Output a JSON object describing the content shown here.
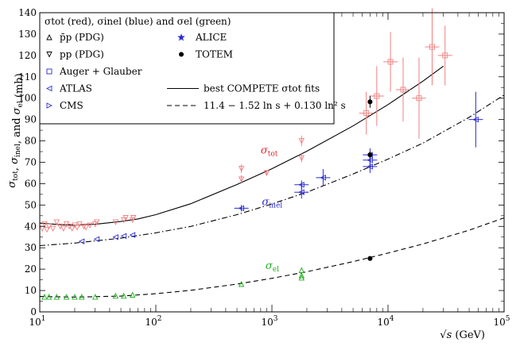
{
  "chart_data": {
    "type": "scatter",
    "title": "",
    "xlabel": "√s (GeV)",
    "xlabel_symbol": "√s",
    "xlabel_unit": "(GeV)",
    "ylabel": "σ_tot, σ_inel, and σ_el (mb)",
    "ylabel_unit": "(mb)",
    "xscale": "log",
    "xlim": [
      10,
      100000
    ],
    "ylim": [
      0,
      140
    ],
    "x_ticks": [
      10,
      100,
      1000,
      10000,
      100000
    ],
    "x_tick_labels": [
      {
        "base": "10",
        "exp": "1"
      },
      {
        "base": "10",
        "exp": "2"
      },
      {
        "base": "10",
        "exp": "3"
      },
      {
        "base": "10",
        "exp": "4"
      },
      {
        "base": "10",
        "exp": "5"
      }
    ],
    "y_ticks": [
      0,
      10,
      20,
      30,
      40,
      50,
      60,
      70,
      80,
      90,
      100,
      110,
      120,
      130,
      140
    ],
    "legend": {
      "placement": "top-left",
      "header": "σtot (red), σinel (blue) and σel (green)",
      "entries": [
        {
          "marker": "triangle-up",
          "label": "p̄p (PDG)"
        },
        {
          "marker": "triangle-down",
          "label": "pp (PDG)"
        },
        {
          "marker": "square",
          "label": "Auger + Glauber"
        },
        {
          "marker": "triangle-left",
          "label": "ATLAS"
        },
        {
          "marker": "triangle-right",
          "label": "CMS"
        },
        {
          "marker": "star",
          "label": "ALICE"
        },
        {
          "marker": "circle",
          "label": "TOTEM"
        },
        {
          "marker": "solid-line",
          "label": "best COMPETE σtot fits"
        },
        {
          "marker": "dashed-line",
          "label": "11.4 − 1.52 ln s + 0.130 ln² s"
        }
      ]
    },
    "annotations": [
      {
        "text": "σtot",
        "color": "#e8262a",
        "x": 800,
        "y": 74
      },
      {
        "text": "σinel",
        "color": "#2a2ad6",
        "x": 820,
        "y": 50
      },
      {
        "text": "σel",
        "color": "#1fae1f",
        "x": 880,
        "y": 20
      }
    ],
    "curves": [
      {
        "name": "best COMPETE σtot fit",
        "style": "solid",
        "color": "#000000",
        "x": [
          10,
          15,
          20,
          30,
          50,
          70,
          100,
          200,
          500,
          1000,
          2000,
          5000,
          10000,
          20000,
          30000
        ],
        "y": [
          41.5,
          40.8,
          40.6,
          41.0,
          42.3,
          43.5,
          45.5,
          50.6,
          59.6,
          67.0,
          75.2,
          87.0,
          97.0,
          108.0,
          115.0
        ]
      },
      {
        "name": "σinel fit",
        "style": "dash-dot",
        "color": "#000000",
        "x": [
          10,
          20,
          50,
          100,
          200,
          500,
          1000,
          2000,
          5000,
          10000,
          20000,
          50000,
          100000
        ],
        "y": [
          31.0,
          32.2,
          34.5,
          37.0,
          40.0,
          45.5,
          50.5,
          56.0,
          64.5,
          71.5,
          79.0,
          91.0,
          101.5
        ]
      },
      {
        "name": "11.4 − 1.52 ln s + 0.130 ln² s",
        "style": "dashed",
        "color": "#000000",
        "x": [
          10,
          20,
          50,
          100,
          200,
          500,
          1000,
          2000,
          5000,
          10000,
          20000,
          50000,
          100000
        ],
        "y": [
          7.2,
          6.9,
          7.4,
          8.5,
          10.1,
          13.0,
          15.7,
          18.8,
          23.5,
          27.5,
          31.8,
          38.2,
          44.0
        ]
      }
    ],
    "series": [
      {
        "name": "σtot (red)",
        "color": "#f08080",
        "marker": "triangle-down",
        "points": [
          {
            "x": 10.5,
            "y": 39
          },
          {
            "x": 11,
            "y": 41
          },
          {
            "x": 11.5,
            "y": 38.5
          },
          {
            "x": 12,
            "y": 40
          },
          {
            "x": 13,
            "y": 39
          },
          {
            "x": 14,
            "y": 42
          },
          {
            "x": 15,
            "y": 40
          },
          {
            "x": 16,
            "y": 39
          },
          {
            "x": 17,
            "y": 41
          },
          {
            "x": 18,
            "y": 40
          },
          {
            "x": 19,
            "y": 39
          },
          {
            "x": 20,
            "y": 40.5
          },
          {
            "x": 21,
            "y": 39.5
          },
          {
            "x": 22,
            "y": 41
          },
          {
            "x": 24,
            "y": 40
          },
          {
            "x": 25,
            "y": 39.5
          },
          {
            "x": 27,
            "y": 40.5
          },
          {
            "x": 30,
            "y": 41
          },
          {
            "x": 31,
            "y": 42
          },
          {
            "x": 45,
            "y": 42
          },
          {
            "x": 53,
            "y": 43
          },
          {
            "x": 55,
            "y": 44
          },
          {
            "x": 63,
            "y": 43
          },
          {
            "x": 64,
            "y": 44
          },
          {
            "x": 546,
            "y": 62,
            "err": 2
          },
          {
            "x": 546,
            "y": 67,
            "err": 2
          },
          {
            "x": 900,
            "y": 65,
            "err": 1
          },
          {
            "x": 1800,
            "y": 72,
            "err": 2
          },
          {
            "x": 1800,
            "y": 80,
            "err": 2.5
          }
        ]
      },
      {
        "name": "σtot Auger (red)",
        "color": "#f08080",
        "marker": "square",
        "points": [
          {
            "x": 6500,
            "y": 93,
            "err": 10
          },
          {
            "x": 8000,
            "y": 101,
            "err": 14
          },
          {
            "x": 10500,
            "y": 117,
            "err": 14
          },
          {
            "x": 13500,
            "y": 104,
            "err": 15
          },
          {
            "x": 18500,
            "y": 100,
            "err": 19
          },
          {
            "x": 24000,
            "y": 124,
            "err": 18
          },
          {
            "x": 31000,
            "y": 120,
            "err": 14
          }
        ]
      },
      {
        "name": "σinel (blue)",
        "color": "#2a2ad6",
        "marker": "triangle-left",
        "points": [
          {
            "x": 23,
            "y": 33
          },
          {
            "x": 31,
            "y": 34
          },
          {
            "x": 45,
            "y": 35
          },
          {
            "x": 53,
            "y": 35.5
          },
          {
            "x": 63,
            "y": 36
          },
          {
            "x": 546,
            "y": 48.5,
            "err": 1.5
          },
          {
            "x": 1800,
            "y": 56,
            "err": 3
          },
          {
            "x": 1800,
            "y": 59.5,
            "err": 2
          },
          {
            "x": 2760,
            "y": 62.8,
            "err": 4
          },
          {
            "x": 7000,
            "y": 68,
            "err": 3
          },
          {
            "x": 7000,
            "y": 71,
            "err": 3
          },
          {
            "x": 7000,
            "y": 73.5,
            "err": 3
          },
          {
            "x": 57000,
            "y": 90,
            "err": 13
          }
        ]
      },
      {
        "name": "σel (green)",
        "color": "#1fae1f",
        "marker": "triangle-up",
        "points": [
          {
            "x": 11,
            "y": 7
          },
          {
            "x": 12,
            "y": 7
          },
          {
            "x": 14,
            "y": 7
          },
          {
            "x": 17,
            "y": 7
          },
          {
            "x": 20,
            "y": 7
          },
          {
            "x": 23,
            "y": 7
          },
          {
            "x": 30,
            "y": 7
          },
          {
            "x": 45,
            "y": 7.5
          },
          {
            "x": 53,
            "y": 7.5
          },
          {
            "x": 63,
            "y": 8
          },
          {
            "x": 546,
            "y": 13
          },
          {
            "x": 1800,
            "y": 16
          },
          {
            "x": 1800,
            "y": 17
          },
          {
            "x": 1800,
            "y": 19.5
          }
        ]
      },
      {
        "name": "TOTEM (black)",
        "color": "#000000",
        "marker": "circle",
        "points": [
          {
            "x": 7000,
            "y": 98.3,
            "err": 2.8
          },
          {
            "x": 7000,
            "y": 73.5,
            "err": 1.5
          },
          {
            "x": 7000,
            "y": 25,
            "err": 0.5
          }
        ]
      }
    ]
  }
}
